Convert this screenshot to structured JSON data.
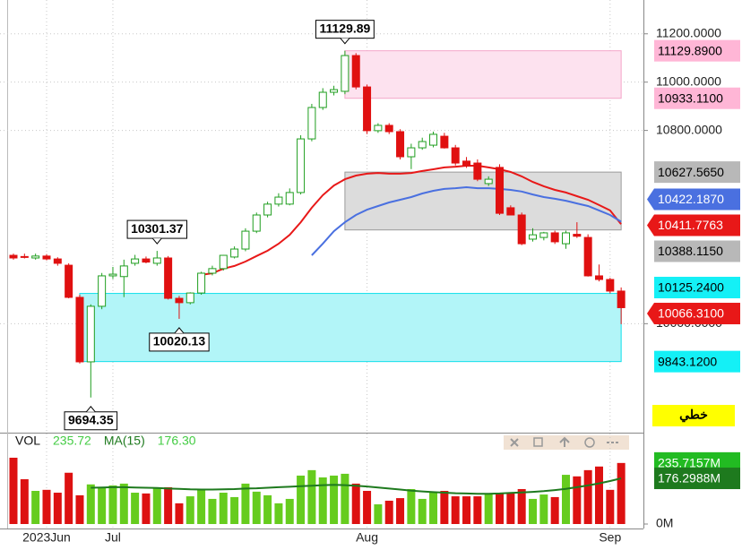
{
  "chart_data": [
    {
      "type": "candlestick",
      "categories": [
        null,
        null,
        null,
        "2023Jun",
        null,
        null,
        null,
        null,
        null,
        "Jul",
        null,
        null,
        null,
        null,
        null,
        null,
        null,
        null,
        null,
        null,
        null,
        null,
        null,
        null,
        null,
        null,
        null,
        null,
        null,
        null,
        null,
        null,
        "Aug",
        null,
        null,
        null,
        null,
        null,
        null,
        null,
        null,
        null,
        null,
        null,
        null,
        null,
        null,
        null,
        null,
        null,
        null,
        null,
        null,
        null,
        "Sep",
        null
      ],
      "open": [
        10283,
        10278,
        10272,
        10280,
        10268,
        10242,
        10109,
        9842,
        10072,
        10198,
        10195,
        10250,
        10268,
        10250,
        10272,
        10105,
        10087,
        10127,
        10209,
        10228,
        10276,
        10309,
        10383,
        10450,
        10495,
        10495,
        10543,
        10765,
        10895,
        10958,
        10962,
        11110,
        10980,
        10799,
        10821,
        10795,
        10691,
        10728,
        10739,
        10776,
        10728,
        10673,
        10665,
        10580,
        10647,
        10480,
        10450,
        10350,
        10357,
        10376,
        10331,
        10370,
        10357,
        10198,
        10183,
        10135
      ],
      "high": [
        10290,
        10290,
        10290,
        10288,
        10275,
        10250,
        10120,
        10080,
        10210,
        10235,
        10265,
        10285,
        10278,
        10301.37,
        10280,
        10115,
        10130,
        10215,
        10240,
        10285,
        10320,
        10395,
        10460,
        10505,
        10540,
        10560,
        10780,
        10910,
        10975,
        10985,
        11129.89,
        11120,
        10990,
        10830,
        10830,
        10805,
        10745,
        10770,
        10795,
        10790,
        10740,
        10690,
        10680,
        10610,
        10660,
        10490,
        10460,
        10395,
        10380,
        10385,
        10385,
        10420,
        10370,
        10245,
        10190,
        10150
      ],
      "low": [
        10265,
        10270,
        10265,
        10262,
        10240,
        10105,
        9835,
        9694.35,
        10060,
        10185,
        10110,
        10240,
        10250,
        10240,
        10100,
        10020.13,
        10080,
        10120,
        10200,
        10220,
        10270,
        10300,
        10375,
        10440,
        10485,
        10490,
        10535,
        10755,
        10885,
        10945,
        10950,
        10970,
        10785,
        10790,
        10785,
        10680,
        10640,
        10720,
        10730,
        10725,
        10655,
        10645,
        10590,
        10570,
        10450,
        10450,
        10325,
        10340,
        10345,
        10330,
        10310,
        10355,
        10195,
        10175,
        10125,
        9998
      ],
      "close": [
        10272,
        10276,
        10280,
        10268,
        10250,
        10109,
        9842,
        10072,
        10198,
        10205,
        10239,
        10268,
        10255,
        10272,
        10105,
        10087,
        10127,
        10209,
        10228,
        10283,
        10309,
        10383,
        10450,
        10495,
        10524,
        10543,
        10765,
        10895,
        10958,
        10969,
        11110,
        10980,
        10799,
        10821,
        10795,
        10691,
        10728,
        10754,
        10784,
        10728,
        10665,
        10654,
        10598,
        10598,
        10457,
        10450,
        10331,
        10368,
        10376,
        10339,
        10376,
        10362,
        10198,
        10183,
        10135,
        10066.31
      ],
      "up_color": "#1f9e1f",
      "down_color": "#e01010",
      "ylim": [
        9560,
        11340
      ],
      "yticks": [
        {
          "value": 10000,
          "label": "10000.0000"
        },
        {
          "value": 10800,
          "label": "10800.0000"
        },
        {
          "value": 11000,
          "label": "11000.0000"
        },
        {
          "value": 11200,
          "label": "11200.0000"
        }
      ],
      "grid": true,
      "lines": [
        {
          "color": "#e81818",
          "values": [
            null,
            null,
            null,
            null,
            null,
            null,
            null,
            null,
            null,
            null,
            null,
            null,
            null,
            null,
            null,
            null,
            null,
            10202,
            10209,
            10228,
            10239,
            10257,
            10280,
            10302,
            10331,
            10368,
            10420,
            10480,
            10532,
            10572,
            10598,
            10613,
            10621,
            10624,
            10621,
            10621,
            10624,
            10632,
            10639,
            10647,
            10650,
            10654,
            10654,
            10647,
            10639,
            10628,
            10610,
            10587,
            10569,
            10554,
            10543,
            10528,
            10513,
            10491,
            10469,
            10411.7763
          ]
        },
        {
          "color": "#4a70e0",
          "values": [
            null,
            null,
            null,
            null,
            null,
            null,
            null,
            null,
            null,
            null,
            null,
            null,
            null,
            null,
            null,
            null,
            null,
            null,
            null,
            null,
            null,
            null,
            null,
            null,
            null,
            null,
            null,
            10283,
            10331,
            10383,
            10420,
            10450,
            10472,
            10487,
            10502,
            10513,
            10524,
            10539,
            10550,
            10558,
            10561,
            10565,
            10561,
            10561,
            10558,
            10554,
            10547,
            10535,
            10524,
            10517,
            10509,
            10498,
            10487,
            10469,
            10450,
            10422.187
          ]
        }
      ],
      "zones": [
        {
          "start": 30,
          "top": 11129.89,
          "bottom": 10933.11,
          "color": "#fde2ef",
          "border": "#f4a6c9"
        },
        {
          "start": 30,
          "top": 10627.565,
          "bottom": 10388.115,
          "color": "#dcdcdc",
          "border": "#9a9a9a"
        },
        {
          "start": 6,
          "top": 10125.24,
          "bottom": 9843.12,
          "color": "#b2f5f8",
          "border": "#10e0ea"
        }
      ],
      "annotations": [
        {
          "text": "11129.89",
          "index": 30,
          "anchor": "high"
        },
        {
          "text": "10301.37",
          "index": 13,
          "anchor": "high"
        },
        {
          "text": "10020.13",
          "index": 15,
          "anchor": "low"
        },
        {
          "text": "9694.35",
          "index": 7,
          "anchor": "low"
        }
      ],
      "price_labels": [
        {
          "value": 11129.89,
          "label": "11129.8900",
          "color": "#ffb6d6",
          "text_color": "#000000"
        },
        {
          "value": 10933.11,
          "label": "10933.1100",
          "color": "#ffb6d6",
          "text_color": "#000000"
        },
        {
          "value": 10627.565,
          "label": "10627.5650",
          "color": "#b8b8b8",
          "text_color": "#000000"
        },
        {
          "value": 10422.187,
          "label": "10422.1870",
          "color": "#4a70e0",
          "text_color": "#ffffff"
        },
        {
          "value": 10411.7763,
          "label": "10411.7763",
          "color": "#e81818",
          "text_color": "#ffffff"
        },
        {
          "value": 10388.115,
          "label": "10388.1150",
          "color": "#b8b8b8",
          "text_color": "#000000"
        },
        {
          "value": 10125.24,
          "label": "10125.2400",
          "color": "#14f0f6",
          "text_color": "#000000"
        },
        {
          "value": 10066.31,
          "label": "10066.3100",
          "color": "#e81818",
          "text_color": "#ffffff"
        },
        {
          "value": 9843.12,
          "label": "9843.1200",
          "color": "#14f0f6",
          "text_color": "#000000"
        }
      ]
    },
    {
      "type": "volume",
      "title": "VOL",
      "value_label": "235.72",
      "ma_name": "MA(15)",
      "ma_label": "176.30",
      "values": [
        256,
        173,
        128,
        132,
        121,
        198,
        111,
        153,
        142,
        149,
        156,
        121,
        118,
        139,
        142,
        80,
        107,
        132,
        97,
        121,
        104,
        156,
        125,
        111,
        80,
        97,
        187,
        208,
        180,
        187,
        194,
        156,
        128,
        76,
        90,
        100,
        135,
        97,
        121,
        128,
        107,
        107,
        107,
        118,
        121,
        118,
        135,
        97,
        114,
        104,
        190,
        184,
        208,
        222,
        132,
        235.72
      ],
      "ma": [
        null,
        null,
        null,
        null,
        null,
        null,
        null,
        140,
        141,
        142,
        142,
        141,
        140,
        139,
        137,
        136,
        134,
        133,
        133,
        134,
        135,
        137,
        138,
        140,
        142,
        144,
        146,
        148,
        150,
        151,
        150,
        148,
        145,
        141,
        137,
        133,
        129,
        126,
        123,
        121,
        119,
        118,
        117,
        117,
        118,
        120,
        122,
        124,
        127,
        131,
        136,
        142,
        149,
        157,
        166,
        176.3
      ],
      "up_color": "#66cc1e",
      "down_color": "#dd1111",
      "ma_color": "#1e7a1e",
      "title_color": "#44cc44",
      "ylim": [
        0,
        294
      ],
      "yticks": [
        {
          "value": 0,
          "label": "0M"
        }
      ],
      "last_labels": [
        {
          "value": 235.7157,
          "label": "235.7157M",
          "color": "#22bb22"
        },
        {
          "value": 176.2988,
          "label": "176.2988M",
          "color": "#1e7a1e"
        }
      ]
    }
  ],
  "toolbar": {
    "button": "خطي"
  }
}
